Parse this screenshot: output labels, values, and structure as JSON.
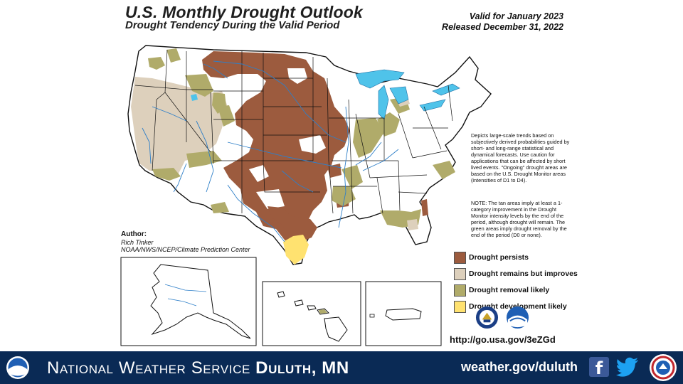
{
  "header": {
    "title": "U.S. Monthly Drought Outlook",
    "subtitle": "Drought Tendency During the Valid Period",
    "valid_for": "Valid for January 2023",
    "released": "Released December 31, 2022"
  },
  "description": "Depicts large-scale trends based on subjectively derived probabilities guided by short- and long-range statistical and dynamical forecasts. Use caution for applications that can be affected by short lived events. \"Ongoing\" drought areas are based on the U.S. Drought Monitor areas (intensities of D1 to D4).",
  "note": "NOTE: The tan areas imply at least a 1-category improvement in the Drought Monitor intensity levels by the end of the period, although drought will remain. The green areas imply drought removal by the end of the period (D0 or none).",
  "author": {
    "label": "Author:",
    "name": "Rich Tinker",
    "org": "NOAA/NWS/NCEP/Climate Prediction Center"
  },
  "legend": [
    {
      "label": "Drought persists",
      "color": "#9c5b3e"
    },
    {
      "label": "Drought remains but improves",
      "color": "#ddd0bc"
    },
    {
      "label": "Drought removal likely",
      "color": "#b0ab6a"
    },
    {
      "label": "Drought development likely",
      "color": "#ffe270"
    }
  ],
  "colors": {
    "water": "#4fc3ea",
    "river": "#2e7fc8",
    "footer_bg": "#0a2a55"
  },
  "url": "http://go.usa.gov/3eZGd",
  "logos": [
    "doc-seal-icon",
    "noaa-logo-icon"
  ],
  "footer": {
    "org_prefix": "National Weather Service",
    "office": "Duluth, MN",
    "site": "weather.gov/duluth",
    "icons": [
      "noaa-logo-icon",
      "facebook-icon",
      "twitter-icon",
      "nws-seal-icon"
    ]
  }
}
